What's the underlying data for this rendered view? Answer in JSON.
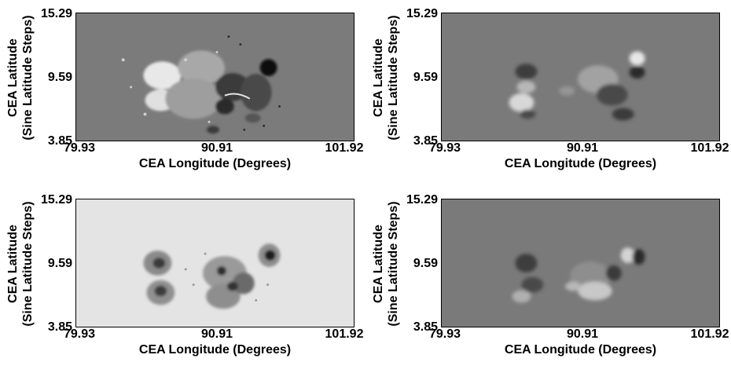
{
  "axes": {
    "y_label_line1": "CEA Latitude",
    "y_label_line2": "(Sine Latitude Steps)",
    "x_label": "CEA Longitude (Degrees)",
    "y_ticks": [
      "15.29",
      "9.59",
      "3.85"
    ],
    "x_ticks": [
      "79.93",
      "90.91",
      "101.92"
    ]
  },
  "panels": [
    {
      "name": "panel-top-left",
      "background": "#7b7b7b",
      "map": "magnetogram-radial"
    },
    {
      "name": "panel-top-right",
      "background": "#7a7a7a",
      "map": "magnetogram-transverse-1"
    },
    {
      "name": "panel-bottom-left",
      "background": "#e4e4e4",
      "map": "continuum-intensity"
    },
    {
      "name": "panel-bottom-right",
      "background": "#7a7a7a",
      "map": "magnetogram-transverse-2"
    }
  ]
}
